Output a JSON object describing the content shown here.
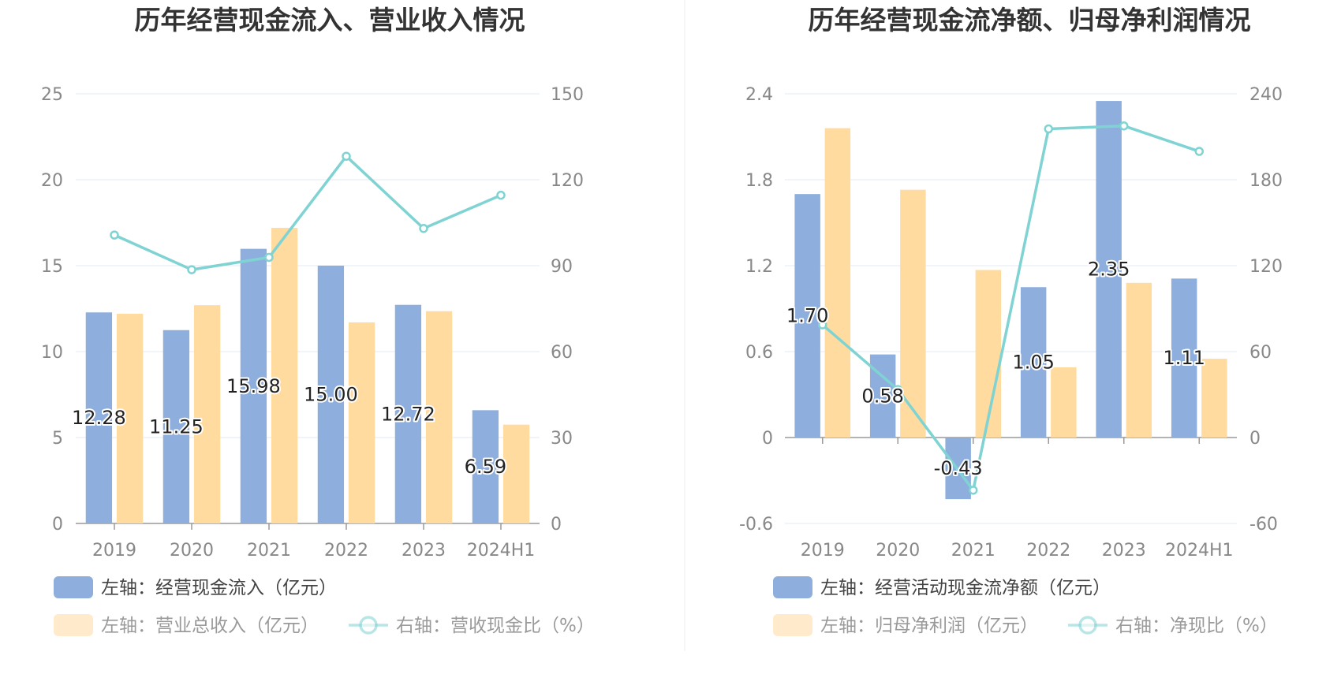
{
  "colors": {
    "bar_primary": "#8eaedd",
    "bar_secondary": "#ffdba0",
    "line": "#7fd3d3",
    "title": "#333333",
    "tick": "#888888",
    "grid": "#e3e8f3",
    "axis": "#9a9a9a",
    "legend_text": "#444444",
    "divider": "#eeeeee"
  },
  "chart_data": [
    {
      "type": "bar",
      "title": "历年经营现金流入、营业收入情况",
      "categories": [
        "2019",
        "2020",
        "2021",
        "2022",
        "2023",
        "2024H1"
      ],
      "left_axis": {
        "ticks": [
          "0",
          "5",
          "10",
          "15",
          "20",
          "25"
        ],
        "range": [
          0,
          25
        ]
      },
      "right_axis": {
        "ticks": [
          "0",
          "30",
          "60",
          "90",
          "120",
          "150"
        ],
        "range": [
          0,
          150
        ]
      },
      "series": [
        {
          "name": "左轴：经营现金流入（亿元）",
          "type": "bar",
          "axis": "left",
          "color": "#8eaedd",
          "values": [
            12.28,
            11.25,
            15.98,
            15.0,
            12.72,
            6.59
          ],
          "labels": [
            "12.28",
            "11.25",
            "15.98",
            "15.00",
            "12.72",
            "6.59"
          ]
        },
        {
          "name": "左轴：营业总收入（亿元）",
          "type": "bar",
          "axis": "left",
          "color": "#ffdba0",
          "values": [
            12.2,
            12.7,
            17.2,
            11.7,
            12.35,
            5.75
          ]
        },
        {
          "name": "右轴：营收现金比（%）",
          "type": "line",
          "axis": "right",
          "color": "#7fd3d3",
          "values": [
            100.7,
            88.6,
            92.9,
            128.2,
            103.0,
            114.6
          ]
        }
      ],
      "legend": [
        {
          "text": "左轴：经营现金流入（亿元）",
          "kind": "bar",
          "color": "#8eaedd",
          "active": true
        },
        {
          "text": "左轴：营业总收入（亿元）",
          "kind": "bar",
          "color": "#ffdba0",
          "active": false
        },
        {
          "text": "右轴：营收现金比（%）",
          "kind": "line",
          "color": "#7fd3d3",
          "active": false
        }
      ]
    },
    {
      "type": "bar",
      "title": "历年经营现金流净额、归母净利润情况",
      "categories": [
        "2019",
        "2020",
        "2021",
        "2022",
        "2023",
        "2024H1"
      ],
      "left_axis": {
        "ticks": [
          "-0.6",
          "0",
          "0.6",
          "1.2",
          "1.8",
          "2.4"
        ],
        "range": [
          -0.6,
          2.4
        ]
      },
      "right_axis": {
        "ticks": [
          "-60",
          "0",
          "60",
          "120",
          "180",
          "240"
        ],
        "range": [
          -60,
          240
        ]
      },
      "series": [
        {
          "name": "左轴：经营活动现金流净额（亿元）",
          "type": "bar",
          "axis": "left",
          "color": "#8eaedd",
          "values": [
            1.7,
            0.58,
            -0.43,
            1.05,
            2.35,
            1.11
          ],
          "labels": [
            "1.70",
            "0.58",
            "-0.43",
            "1.05",
            "2.35",
            "1.11"
          ]
        },
        {
          "name": "左轴：归母净利润（亿元）",
          "type": "bar",
          "axis": "left",
          "color": "#ffdba0",
          "values": [
            2.16,
            1.73,
            1.17,
            0.49,
            1.08,
            0.55
          ]
        },
        {
          "name": "右轴：净现比（%）",
          "type": "line",
          "axis": "right",
          "color": "#7fd3d3",
          "values": [
            78.7,
            33.5,
            -36.8,
            215.5,
            217.6,
            199.8
          ]
        }
      ],
      "legend": [
        {
          "text": "左轴：经营活动现金流净额（亿元）",
          "kind": "bar",
          "color": "#8eaedd",
          "active": true
        },
        {
          "text": "左轴：归母净利润（亿元）",
          "kind": "bar",
          "color": "#ffdba0",
          "active": false
        },
        {
          "text": "右轴：净现比（%）",
          "kind": "line",
          "color": "#7fd3d3",
          "active": false
        }
      ]
    }
  ]
}
